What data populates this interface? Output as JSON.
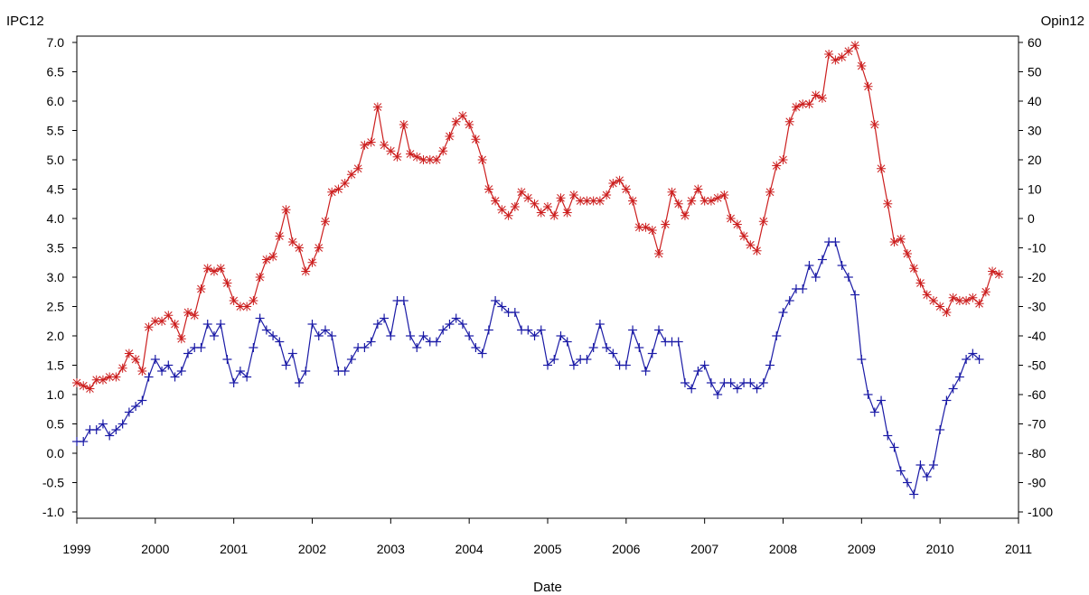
{
  "chart_data": {
    "type": "line",
    "xlabel": "Date",
    "y_left_label": "IPC12",
    "y_right_label": "Opin12",
    "grid": false,
    "legend": "none",
    "xlim": [
      1999.0,
      2011.0
    ],
    "ylim_left": [
      -1.0,
      7.0
    ],
    "ylim_right": [
      -100,
      60
    ],
    "x_ticks": [
      "1999",
      "2000",
      "2001",
      "2002",
      "2003",
      "2004",
      "2005",
      "2006",
      "2007",
      "2008",
      "2009",
      "2010",
      "2011"
    ],
    "y_left_ticks": [
      "-1.0",
      "-0.5",
      "0.0",
      "0.5",
      "1.0",
      "1.5",
      "2.0",
      "2.5",
      "3.0",
      "3.5",
      "4.0",
      "4.5",
      "5.0",
      "5.5",
      "6.0",
      "6.5",
      "7.0"
    ],
    "y_right_ticks": [
      "-100",
      "-90",
      "-80",
      "-70",
      "-60",
      "-50",
      "-40",
      "-30",
      "-20",
      "-10",
      "0",
      "10",
      "20",
      "30",
      "40",
      "50",
      "60"
    ],
    "series": [
      {
        "axis": "left",
        "marker": "plus",
        "color": "#1a1aa6",
        "start_year": 1999.0,
        "step_months": 1,
        "values": [
          0.2,
          0.2,
          0.4,
          0.4,
          0.5,
          0.3,
          0.4,
          0.5,
          0.7,
          0.8,
          0.9,
          1.3,
          1.6,
          1.4,
          1.5,
          1.3,
          1.4,
          1.7,
          1.8,
          1.8,
          2.2,
          2.0,
          2.2,
          1.6,
          1.2,
          1.4,
          1.3,
          1.8,
          2.3,
          2.1,
          2.0,
          1.9,
          1.5,
          1.7,
          1.2,
          1.4,
          2.2,
          2.0,
          2.1,
          2.0,
          1.4,
          1.4,
          1.6,
          1.8,
          1.8,
          1.9,
          2.2,
          2.3,
          2.0,
          2.6,
          2.6,
          2.0,
          1.8,
          2.0,
          1.9,
          1.9,
          2.1,
          2.2,
          2.3,
          2.2,
          2.0,
          1.8,
          1.7,
          2.1,
          2.6,
          2.5,
          2.4,
          2.4,
          2.1,
          2.1,
          2.0,
          2.1,
          1.5,
          1.6,
          2.0,
          1.9,
          1.5,
          1.6,
          1.6,
          1.8,
          2.2,
          1.8,
          1.7,
          1.5,
          1.5,
          2.1,
          1.8,
          1.4,
          1.7,
          2.1,
          1.9,
          1.9,
          1.9,
          1.2,
          1.1,
          1.4,
          1.5,
          1.2,
          1.0,
          1.2,
          1.2,
          1.1,
          1.2,
          1.2,
          1.1,
          1.2,
          1.5,
          2.0,
          2.4,
          2.6,
          2.8,
          2.8,
          3.2,
          3.0,
          3.3,
          3.6,
          3.6,
          3.2,
          3.0,
          2.7,
          1.6,
          1.0,
          0.7,
          0.9,
          0.3,
          0.1,
          -0.3,
          -0.5,
          -0.7,
          -0.2,
          -0.4,
          -0.2,
          0.4,
          0.9,
          1.1,
          1.3,
          1.6,
          1.7,
          1.6
        ]
      },
      {
        "axis": "right",
        "marker": "asterisk",
        "color": "#cc1f1f",
        "start_year": 1999.0,
        "step_months": 1,
        "values": [
          -56,
          -57,
          -58,
          -55,
          -55,
          -54,
          -54,
          -51,
          -46,
          -48,
          -52,
          -37,
          -35,
          -35,
          -33,
          -36,
          -41,
          -32,
          -33,
          -24,
          -17,
          -18,
          -17,
          -22,
          -28,
          -30,
          -30,
          -28,
          -20,
          -14,
          -13,
          -6,
          3,
          -8,
          -10,
          -18,
          -15,
          -10,
          -1,
          9,
          10,
          12,
          15,
          17,
          25,
          26,
          38,
          25,
          23,
          21,
          32,
          22,
          21,
          20,
          20,
          20,
          23,
          28,
          33,
          35,
          32,
          27,
          20,
          10,
          6,
          3,
          1,
          4,
          9,
          7,
          5,
          2,
          4,
          1,
          7,
          2,
          8,
          6,
          6,
          6,
          6,
          8,
          12,
          13,
          10,
          6,
          -3,
          -3,
          -4,
          -12,
          -2,
          9,
          5,
          1,
          6,
          10,
          6,
          6,
          7,
          8,
          0,
          -2,
          -6,
          -9,
          -11,
          -1,
          9,
          18,
          20,
          33,
          38,
          39,
          39,
          42,
          41,
          56,
          54,
          55,
          57,
          59,
          52,
          45,
          32,
          17,
          5,
          -8,
          -7,
          -12,
          -17,
          -22,
          -26,
          -28,
          -30,
          -32,
          -27,
          -28,
          -28,
          -27,
          -29,
          -25,
          -18,
          -19
        ]
      }
    ]
  }
}
